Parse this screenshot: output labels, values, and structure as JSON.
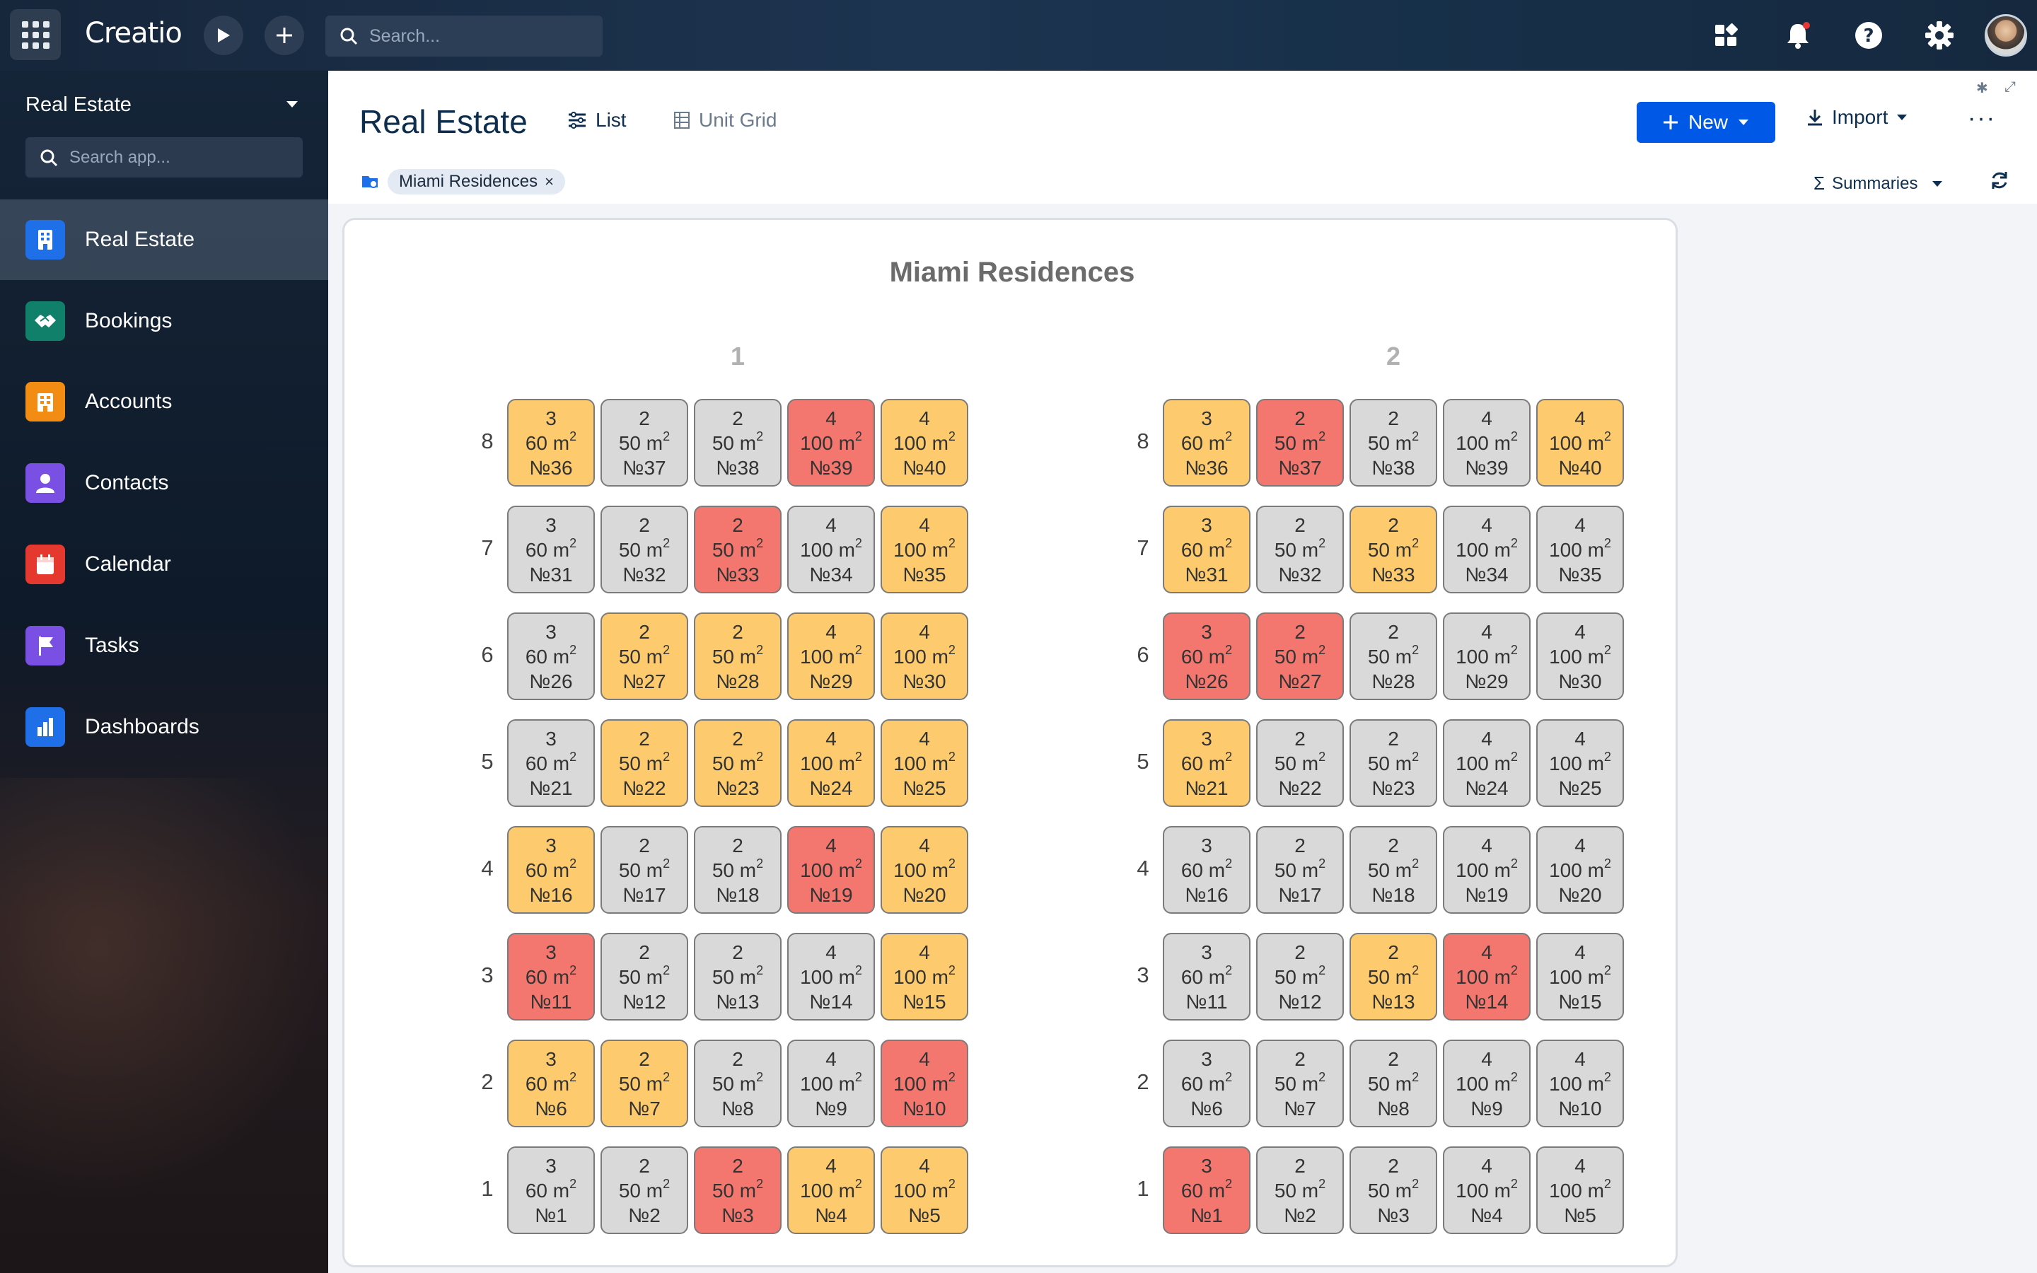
{
  "topbar": {
    "logo": "Creatio",
    "search_placeholder": "Search...",
    "icons": [
      "apps-grid-icon",
      "play-icon",
      "plus-icon",
      "search-icon",
      "widgets-icon",
      "bell-icon",
      "help-icon",
      "gear-icon",
      "avatar"
    ],
    "notification_dot_color": "#e53935"
  },
  "sidebar": {
    "app_name": "Real Estate",
    "search_placeholder": "Search app...",
    "items": [
      {
        "label": "Real Estate",
        "color": "#1f6fe8",
        "icon": "building-icon",
        "active": true
      },
      {
        "label": "Bookings",
        "color": "#11806a",
        "icon": "handshake-icon",
        "active": false
      },
      {
        "label": "Accounts",
        "color": "#f38c12",
        "icon": "office-icon",
        "active": false
      },
      {
        "label": "Contacts",
        "color": "#7a4fe3",
        "icon": "person-icon",
        "active": false
      },
      {
        "label": "Calendar",
        "color": "#e5382e",
        "icon": "calendar-icon",
        "active": false
      },
      {
        "label": "Tasks",
        "color": "#7a4fe3",
        "icon": "flag-icon",
        "active": false
      },
      {
        "label": "Dashboards",
        "color": "#1f6fe8",
        "icon": "bar-chart-icon",
        "active": false
      }
    ]
  },
  "header": {
    "title": "Real Estate",
    "tabs": [
      {
        "label": "List",
        "icon": "list-icon",
        "active": true
      },
      {
        "label": "Unit Grid",
        "icon": "grid-icon",
        "active": false
      }
    ],
    "new_label": "New",
    "import_label": "Import",
    "more_label": "···",
    "filter_chip": "Miami Residences",
    "summaries_label": "Summaries"
  },
  "colors": {
    "available": "#d9d9d9",
    "reserved": "#fdcb6e",
    "sold": "#f3776f",
    "accent": "#0058e6"
  },
  "grid": {
    "title": "Miami Residences",
    "area_unit": "m",
    "floors": [
      8,
      7,
      6,
      5,
      4,
      3,
      2,
      1
    ],
    "sections": [
      {
        "label": "1",
        "rows": [
          [
            {
              "rooms": "3",
              "area": "60",
              "number": "№36",
              "status": "reserved"
            },
            {
              "rooms": "2",
              "area": "50",
              "number": "№37",
              "status": "available"
            },
            {
              "rooms": "2",
              "area": "50",
              "number": "№38",
              "status": "available"
            },
            {
              "rooms": "4",
              "area": "100",
              "number": "№39",
              "status": "sold"
            },
            {
              "rooms": "4",
              "area": "100",
              "number": "№40",
              "status": "reserved"
            }
          ],
          [
            {
              "rooms": "3",
              "area": "60",
              "number": "№31",
              "status": "available"
            },
            {
              "rooms": "2",
              "area": "50",
              "number": "№32",
              "status": "available"
            },
            {
              "rooms": "2",
              "area": "50",
              "number": "№33",
              "status": "sold"
            },
            {
              "rooms": "4",
              "area": "100",
              "number": "№34",
              "status": "available"
            },
            {
              "rooms": "4",
              "area": "100",
              "number": "№35",
              "status": "reserved"
            }
          ],
          [
            {
              "rooms": "3",
              "area": "60",
              "number": "№26",
              "status": "available"
            },
            {
              "rooms": "2",
              "area": "50",
              "number": "№27",
              "status": "reserved"
            },
            {
              "rooms": "2",
              "area": "50",
              "number": "№28",
              "status": "reserved"
            },
            {
              "rooms": "4",
              "area": "100",
              "number": "№29",
              "status": "reserved"
            },
            {
              "rooms": "4",
              "area": "100",
              "number": "№30",
              "status": "reserved"
            }
          ],
          [
            {
              "rooms": "3",
              "area": "60",
              "number": "№21",
              "status": "available"
            },
            {
              "rooms": "2",
              "area": "50",
              "number": "№22",
              "status": "reserved"
            },
            {
              "rooms": "2",
              "area": "50",
              "number": "№23",
              "status": "reserved"
            },
            {
              "rooms": "4",
              "area": "100",
              "number": "№24",
              "status": "reserved"
            },
            {
              "rooms": "4",
              "area": "100",
              "number": "№25",
              "status": "reserved"
            }
          ],
          [
            {
              "rooms": "3",
              "area": "60",
              "number": "№16",
              "status": "reserved"
            },
            {
              "rooms": "2",
              "area": "50",
              "number": "№17",
              "status": "available"
            },
            {
              "rooms": "2",
              "area": "50",
              "number": "№18",
              "status": "available"
            },
            {
              "rooms": "4",
              "area": "100",
              "number": "№19",
              "status": "sold"
            },
            {
              "rooms": "4",
              "area": "100",
              "number": "№20",
              "status": "reserved"
            }
          ],
          [
            {
              "rooms": "3",
              "area": "60",
              "number": "№11",
              "status": "sold"
            },
            {
              "rooms": "2",
              "area": "50",
              "number": "№12",
              "status": "available"
            },
            {
              "rooms": "2",
              "area": "50",
              "number": "№13",
              "status": "available"
            },
            {
              "rooms": "4",
              "area": "100",
              "number": "№14",
              "status": "available"
            },
            {
              "rooms": "4",
              "area": "100",
              "number": "№15",
              "status": "reserved"
            }
          ],
          [
            {
              "rooms": "3",
              "area": "60",
              "number": "№6",
              "status": "reserved"
            },
            {
              "rooms": "2",
              "area": "50",
              "number": "№7",
              "status": "reserved"
            },
            {
              "rooms": "2",
              "area": "50",
              "number": "№8",
              "status": "available"
            },
            {
              "rooms": "4",
              "area": "100",
              "number": "№9",
              "status": "available"
            },
            {
              "rooms": "4",
              "area": "100",
              "number": "№10",
              "status": "sold"
            }
          ],
          [
            {
              "rooms": "3",
              "area": "60",
              "number": "№1",
              "status": "available"
            },
            {
              "rooms": "2",
              "area": "50",
              "number": "№2",
              "status": "available"
            },
            {
              "rooms": "2",
              "area": "50",
              "number": "№3",
              "status": "sold"
            },
            {
              "rooms": "4",
              "area": "100",
              "number": "№4",
              "status": "reserved"
            },
            {
              "rooms": "4",
              "area": "100",
              "number": "№5",
              "status": "reserved"
            }
          ]
        ]
      },
      {
        "label": "2",
        "rows": [
          [
            {
              "rooms": "3",
              "area": "60",
              "number": "№36",
              "status": "reserved"
            },
            {
              "rooms": "2",
              "area": "50",
              "number": "№37",
              "status": "sold"
            },
            {
              "rooms": "2",
              "area": "50",
              "number": "№38",
              "status": "available"
            },
            {
              "rooms": "4",
              "area": "100",
              "number": "№39",
              "status": "available"
            },
            {
              "rooms": "4",
              "area": "100",
              "number": "№40",
              "status": "reserved"
            }
          ],
          [
            {
              "rooms": "3",
              "area": "60",
              "number": "№31",
              "status": "reserved"
            },
            {
              "rooms": "2",
              "area": "50",
              "number": "№32",
              "status": "available"
            },
            {
              "rooms": "2",
              "area": "50",
              "number": "№33",
              "status": "reserved"
            },
            {
              "rooms": "4",
              "area": "100",
              "number": "№34",
              "status": "available"
            },
            {
              "rooms": "4",
              "area": "100",
              "number": "№35",
              "status": "available"
            }
          ],
          [
            {
              "rooms": "3",
              "area": "60",
              "number": "№26",
              "status": "sold"
            },
            {
              "rooms": "2",
              "area": "50",
              "number": "№27",
              "status": "sold"
            },
            {
              "rooms": "2",
              "area": "50",
              "number": "№28",
              "status": "available"
            },
            {
              "rooms": "4",
              "area": "100",
              "number": "№29",
              "status": "available"
            },
            {
              "rooms": "4",
              "area": "100",
              "number": "№30",
              "status": "available"
            }
          ],
          [
            {
              "rooms": "3",
              "area": "60",
              "number": "№21",
              "status": "reserved"
            },
            {
              "rooms": "2",
              "area": "50",
              "number": "№22",
              "status": "available"
            },
            {
              "rooms": "2",
              "area": "50",
              "number": "№23",
              "status": "available"
            },
            {
              "rooms": "4",
              "area": "100",
              "number": "№24",
              "status": "available"
            },
            {
              "rooms": "4",
              "area": "100",
              "number": "№25",
              "status": "available"
            }
          ],
          [
            {
              "rooms": "3",
              "area": "60",
              "number": "№16",
              "status": "available"
            },
            {
              "rooms": "2",
              "area": "50",
              "number": "№17",
              "status": "available"
            },
            {
              "rooms": "2",
              "area": "50",
              "number": "№18",
              "status": "available"
            },
            {
              "rooms": "4",
              "area": "100",
              "number": "№19",
              "status": "available"
            },
            {
              "rooms": "4",
              "area": "100",
              "number": "№20",
              "status": "available"
            }
          ],
          [
            {
              "rooms": "3",
              "area": "60",
              "number": "№11",
              "status": "available"
            },
            {
              "rooms": "2",
              "area": "50",
              "number": "№12",
              "status": "available"
            },
            {
              "rooms": "2",
              "area": "50",
              "number": "№13",
              "status": "reserved"
            },
            {
              "rooms": "4",
              "area": "100",
              "number": "№14",
              "status": "sold"
            },
            {
              "rooms": "4",
              "area": "100",
              "number": "№15",
              "status": "available"
            }
          ],
          [
            {
              "rooms": "3",
              "area": "60",
              "number": "№6",
              "status": "available"
            },
            {
              "rooms": "2",
              "area": "50",
              "number": "№7",
              "status": "available"
            },
            {
              "rooms": "2",
              "area": "50",
              "number": "№8",
              "status": "available"
            },
            {
              "rooms": "4",
              "area": "100",
              "number": "№9",
              "status": "available"
            },
            {
              "rooms": "4",
              "area": "100",
              "number": "№10",
              "status": "available"
            }
          ],
          [
            {
              "rooms": "3",
              "area": "60",
              "number": "№1",
              "status": "sold"
            },
            {
              "rooms": "2",
              "area": "50",
              "number": "№2",
              "status": "available"
            },
            {
              "rooms": "2",
              "area": "50",
              "number": "№3",
              "status": "available"
            },
            {
              "rooms": "4",
              "area": "100",
              "number": "№4",
              "status": "available"
            },
            {
              "rooms": "4",
              "area": "100",
              "number": "№5",
              "status": "available"
            }
          ]
        ]
      }
    ]
  }
}
